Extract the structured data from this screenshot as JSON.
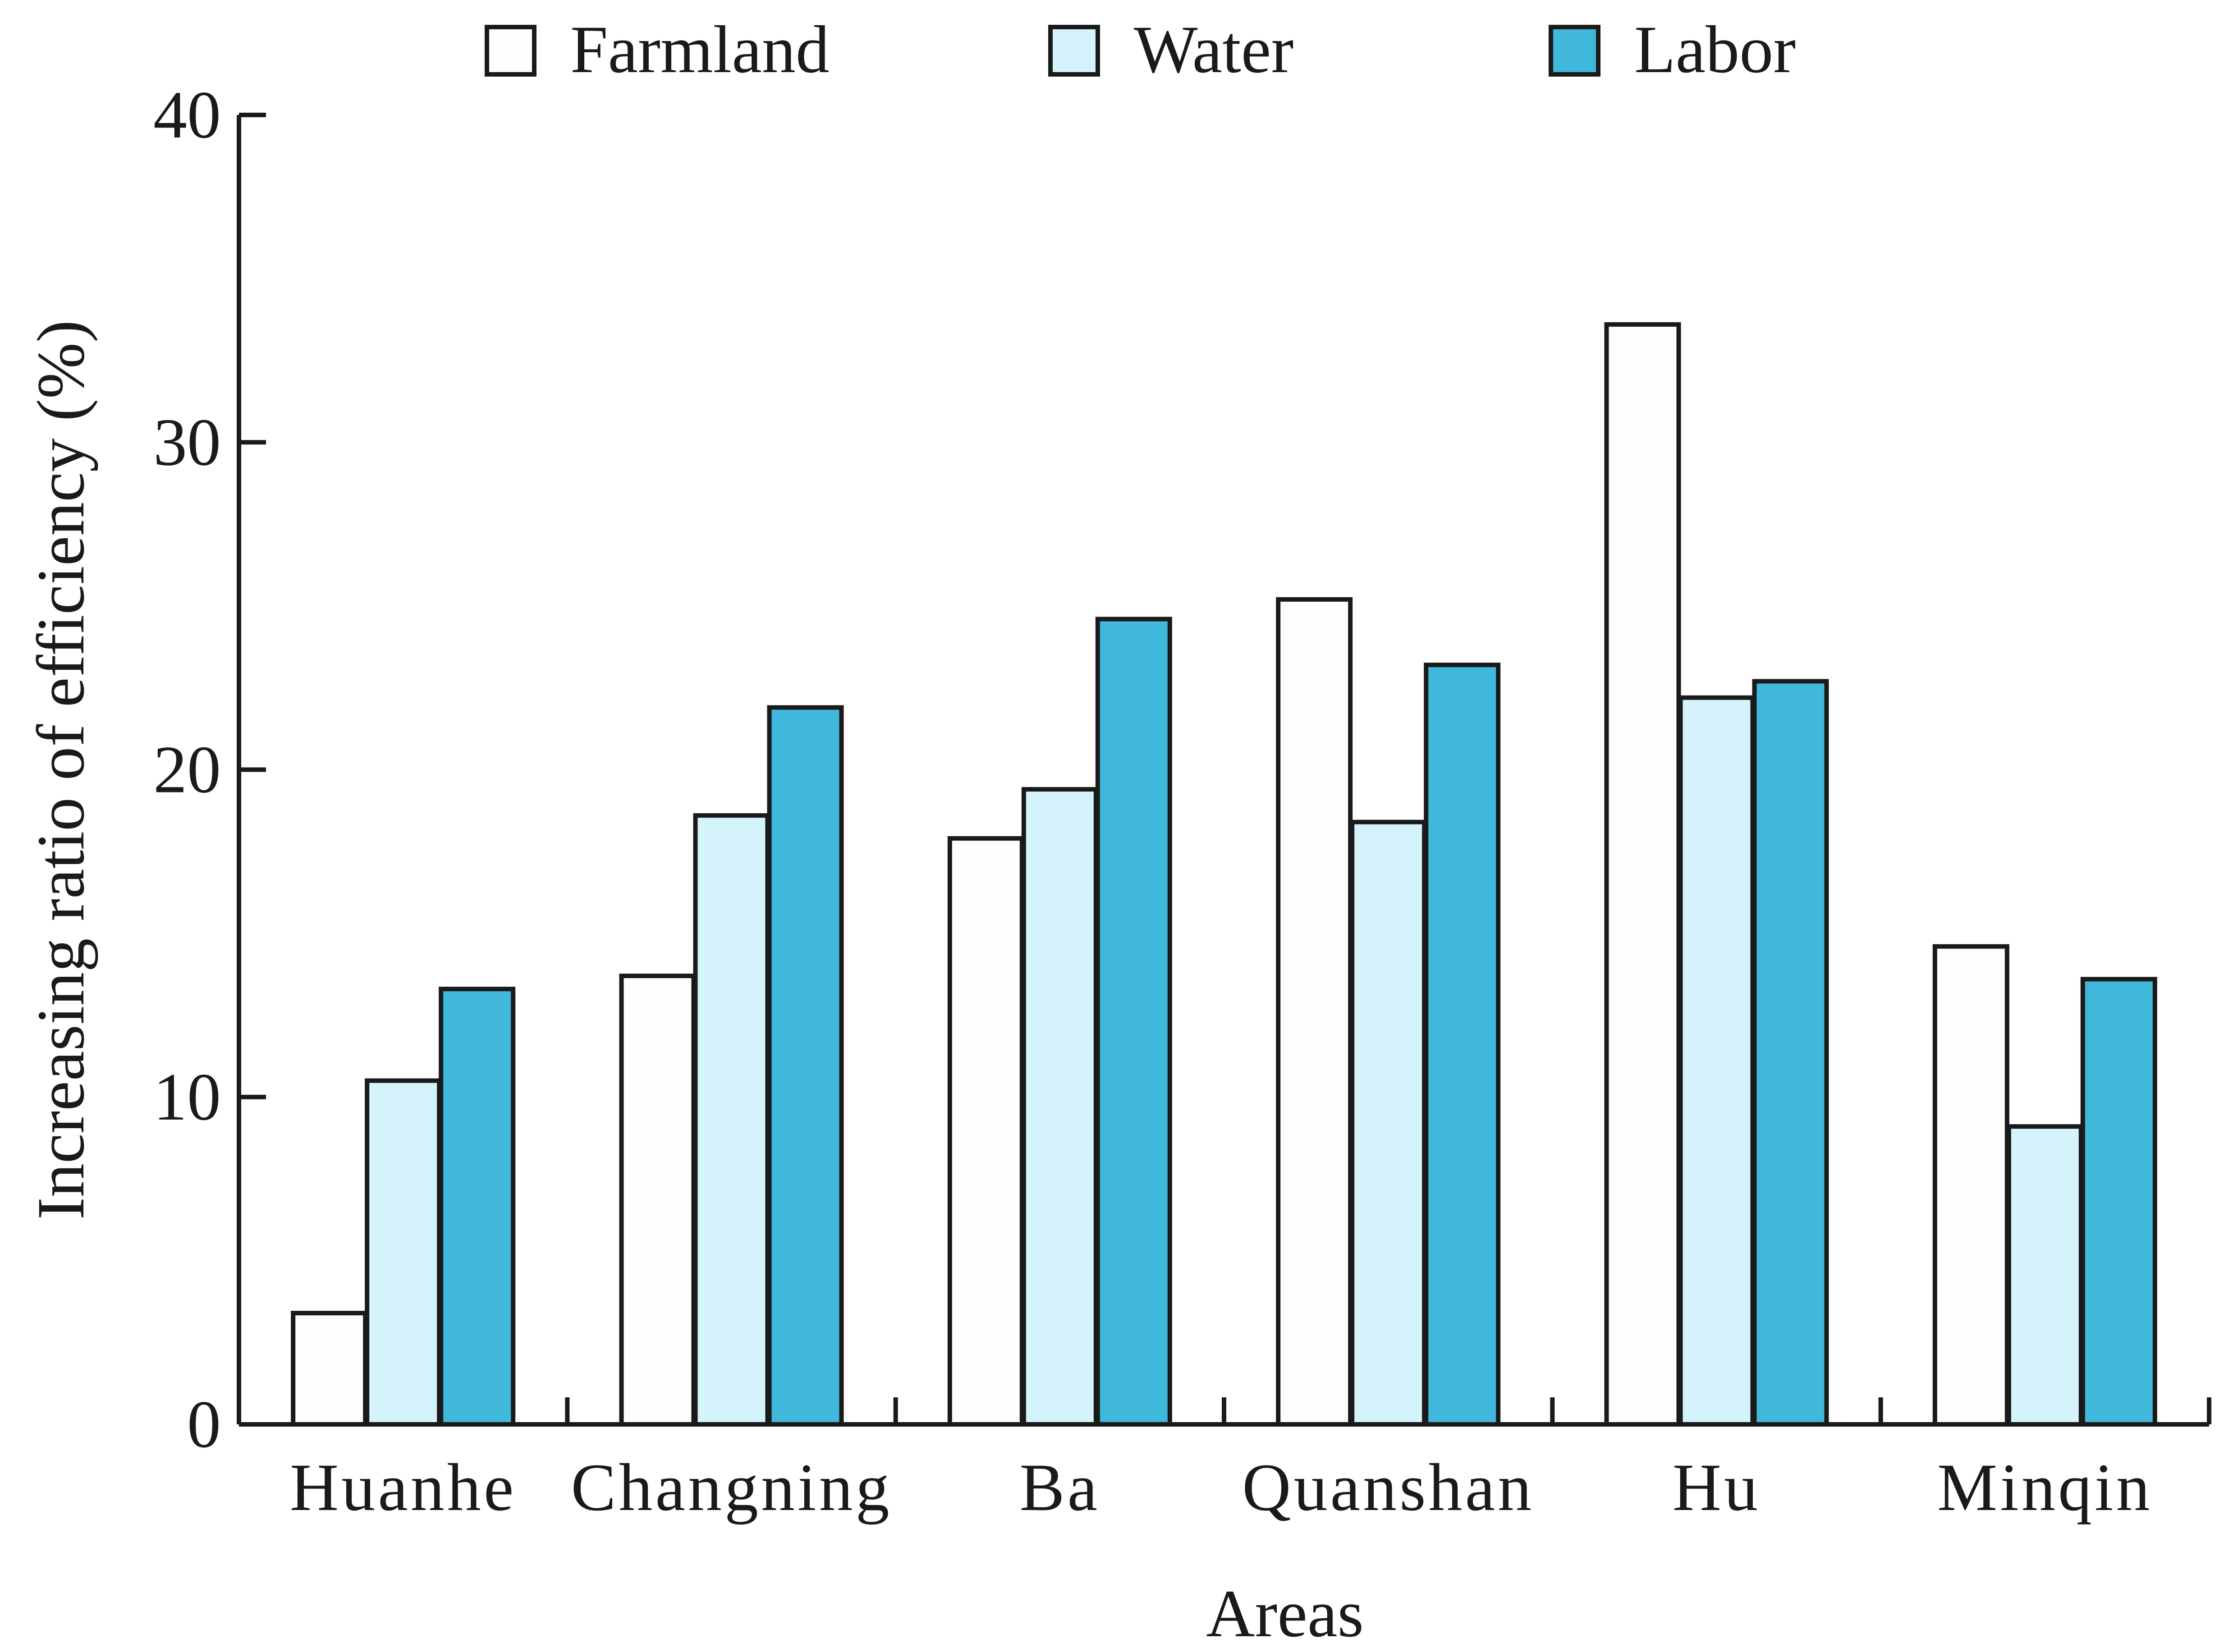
{
  "chart_data": {
    "type": "bar",
    "title": "",
    "xlabel": "Areas",
    "ylabel": "Increasing ratio of efficiency (%)",
    "ylim": [
      0,
      40
    ],
    "yticks": [
      "0",
      "10",
      "20",
      "30",
      "40"
    ],
    "categories": [
      "Huanhe",
      "Changning",
      "Ba",
      "Quanshan",
      "Hu",
      "Minqin"
    ],
    "series": [
      {
        "name": "Farmland",
        "color": "#fdfdfd",
        "values": [
          3.4,
          13.7,
          17.9,
          25.2,
          33.6,
          14.6
        ]
      },
      {
        "name": "Water",
        "color": "#d4f3fa",
        "values": [
          10.5,
          18.6,
          19.4,
          18.4,
          22.2,
          9.1
        ]
      },
      {
        "name": "Labor",
        "color": "#40b8dc",
        "values": [
          13.3,
          21.9,
          24.6,
          23.2,
          22.7,
          13.6
        ]
      }
    ],
    "legend_position": "top",
    "grid": false
  }
}
